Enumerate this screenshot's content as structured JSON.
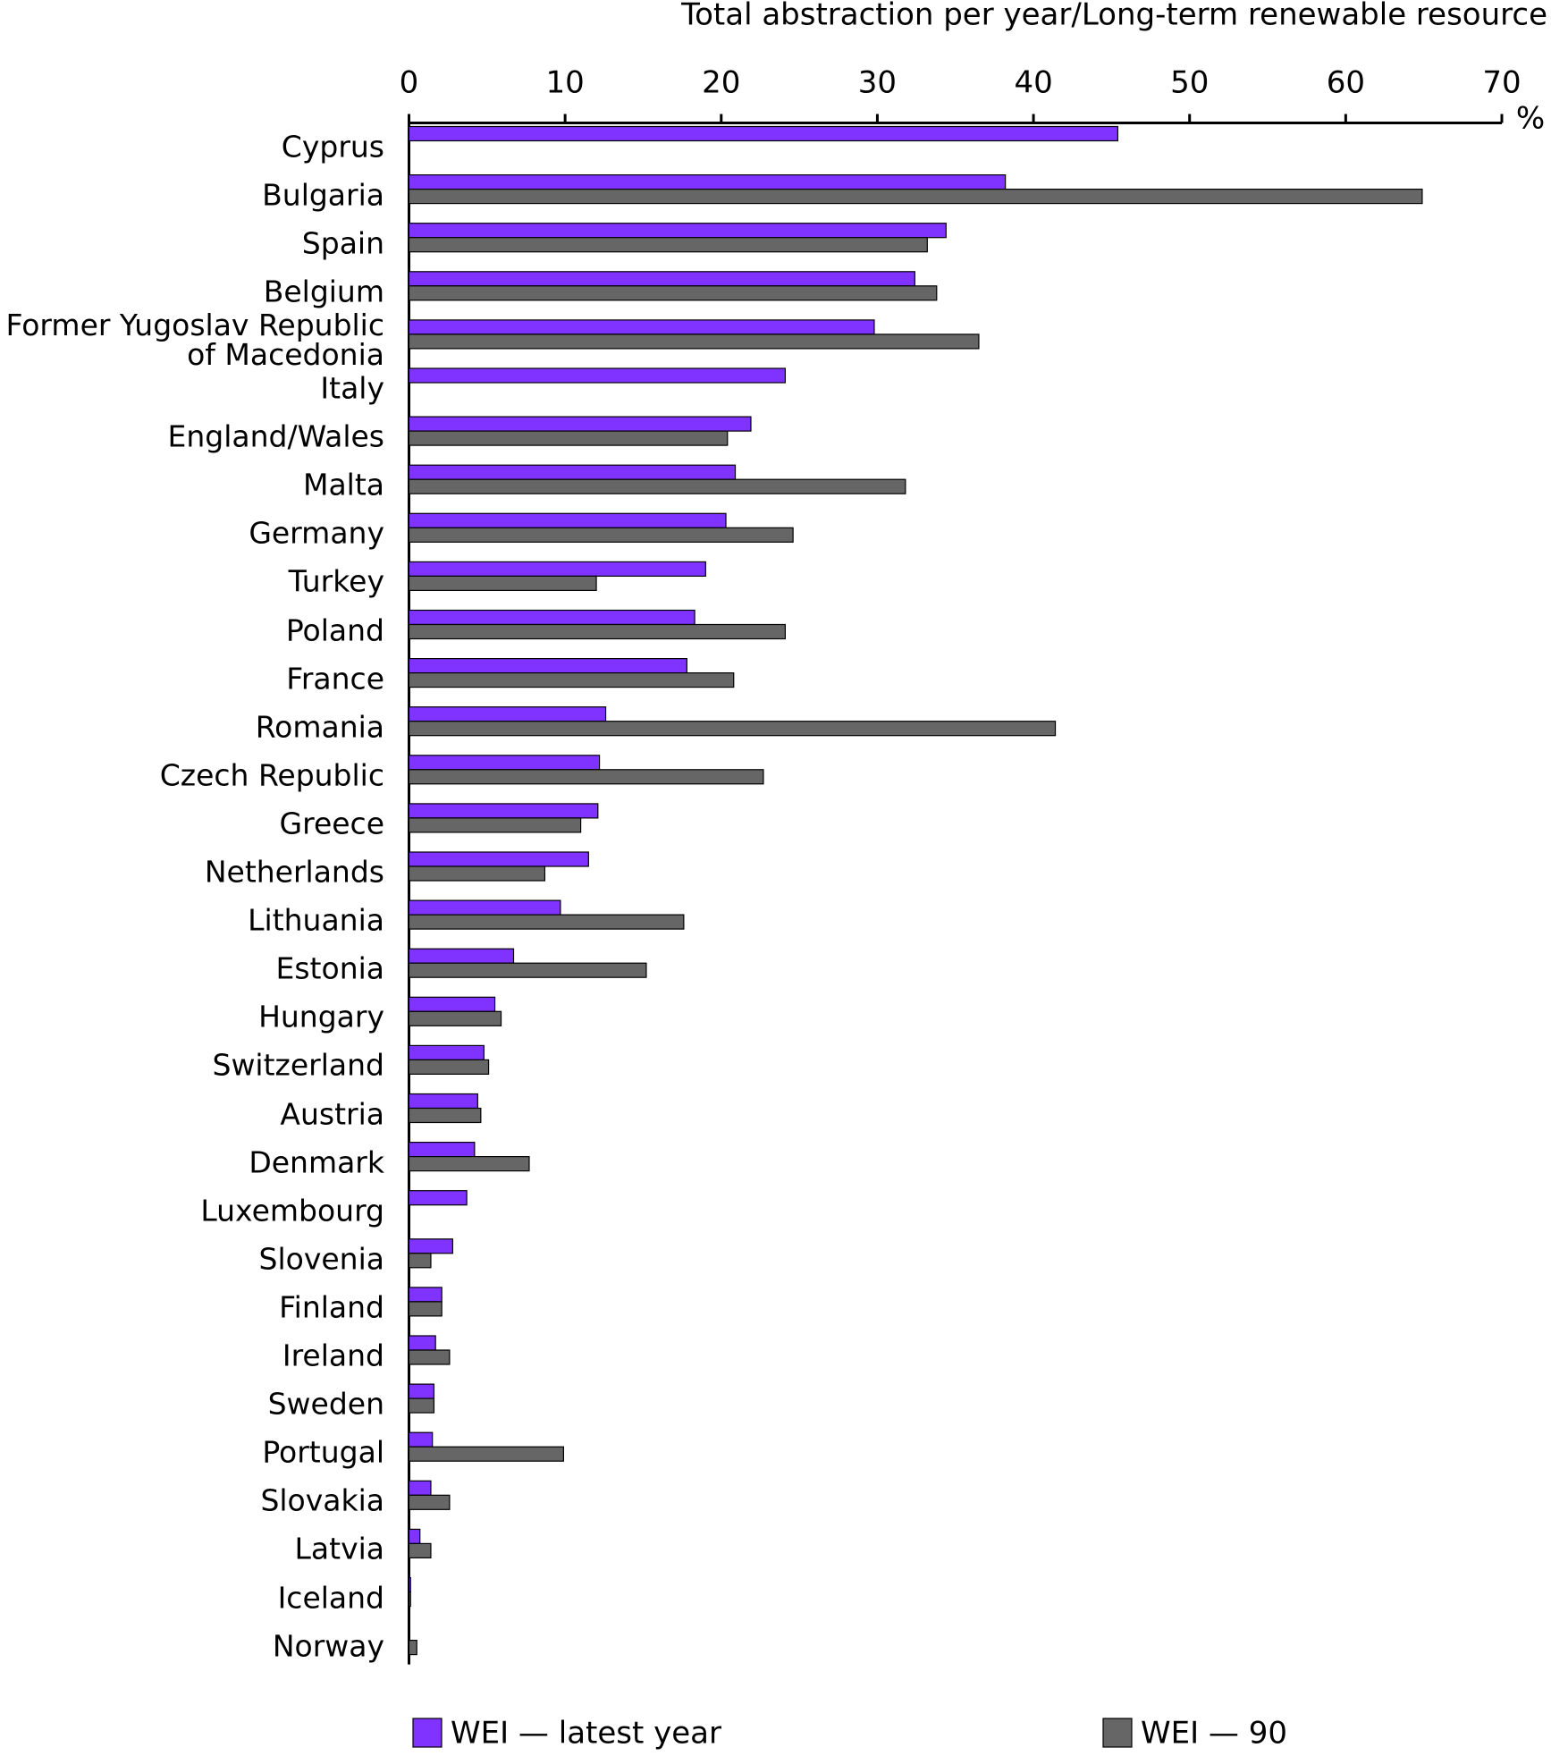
{
  "chart_data": {
    "type": "barh",
    "xlabel": "Total abstraction per year/Long-term renewable resource",
    "x_unit": "%",
    "categories": [
      "Cyprus",
      "Bulgaria",
      "Spain",
      "Belgium",
      "Former Yugoslav Republic of Macedonia",
      "Italy",
      "England/Wales",
      "Malta",
      "Germany",
      "Turkey",
      "Poland",
      "France",
      "Romania",
      "Czech Republic",
      "Greece",
      "Netherlands",
      "Lithuania",
      "Estonia",
      "Hungary",
      "Switzerland",
      "Austria",
      "Denmark",
      "Luxembourg",
      "Slovenia",
      "Finland",
      "Ireland",
      "Sweden",
      "Portugal",
      "Slovakia",
      "Latvia",
      "Iceland",
      "Norway"
    ],
    "series": [
      {
        "name": "WEI — latest year",
        "color": "#8033ff",
        "values": [
          45.4,
          38.2,
          34.4,
          32.4,
          29.8,
          24.1,
          21.9,
          20.9,
          20.3,
          19.0,
          18.3,
          17.8,
          12.6,
          12.2,
          12.1,
          11.5,
          9.7,
          6.7,
          5.5,
          4.8,
          4.4,
          4.2,
          3.7,
          2.8,
          2.1,
          1.7,
          1.6,
          1.5,
          1.4,
          0.7,
          0.1,
          null
        ]
      },
      {
        "name": "WEI — 90",
        "color": "#666666",
        "values": [
          null,
          64.9,
          33.2,
          33.8,
          36.5,
          null,
          20.4,
          31.8,
          24.6,
          12.0,
          24.1,
          20.8,
          41.4,
          22.7,
          11.0,
          8.7,
          17.6,
          15.2,
          5.9,
          5.1,
          4.6,
          7.7,
          null,
          1.4,
          2.1,
          2.6,
          1.6,
          9.9,
          2.6,
          1.4,
          0.1,
          0.5
        ]
      }
    ],
    "xlim": [
      0,
      70
    ],
    "xticks": [
      0,
      10,
      20,
      30,
      40,
      50,
      60,
      70
    ],
    "grid": false
  }
}
